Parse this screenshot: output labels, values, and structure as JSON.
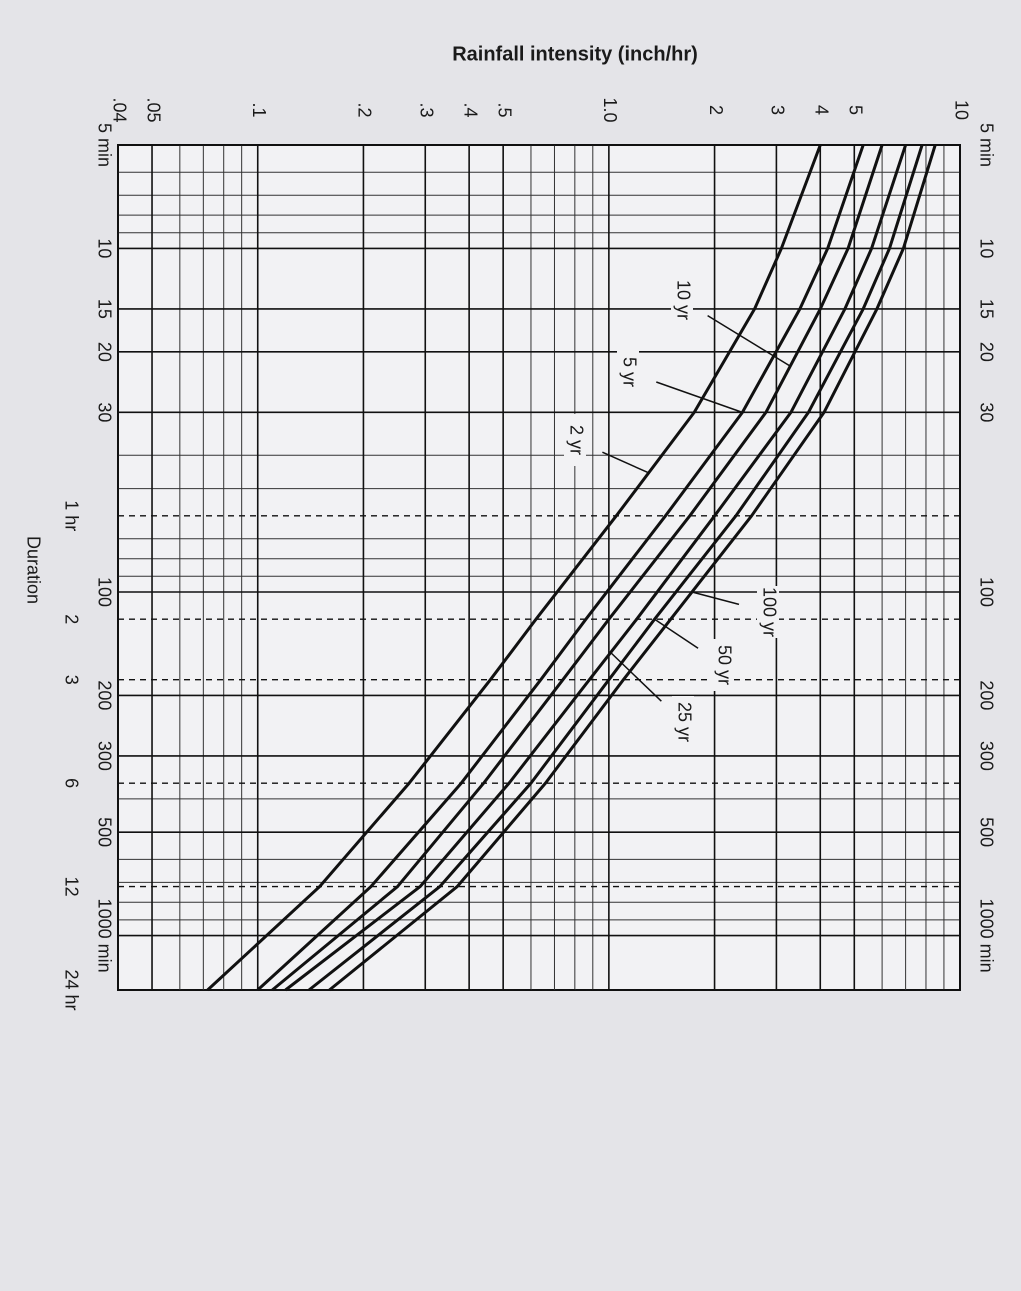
{
  "chart_data": {
    "type": "line",
    "title": "Rainfall intensity (inch/hr)",
    "xlabel": "Duration",
    "log_x": true,
    "log_y": true,
    "grid": true,
    "x": [
      5,
      10,
      15,
      30,
      60,
      120,
      180,
      360,
      720,
      1440
    ],
    "xlim": [
      5,
      1440
    ],
    "xticks": [
      {
        "value": 5,
        "label": "5 min"
      },
      10,
      15,
      20,
      30,
      100,
      200,
      300,
      500,
      {
        "value": 1000,
        "label": "1000 min"
      }
    ],
    "x2ticks": [
      {
        "value": 60,
        "label": "1 hr"
      },
      {
        "value": 120,
        "label": "2"
      },
      {
        "value": 180,
        "label": "3"
      },
      {
        "value": 360,
        "label": "6"
      },
      {
        "value": 720,
        "label": "12"
      },
      {
        "value": 1440,
        "label": "24 hr"
      }
    ],
    "x_minor_grid": [
      6,
      7,
      8,
      9,
      40,
      50,
      70,
      80,
      90,
      400,
      600,
      700,
      800,
      900
    ],
    "ylim": [
      0.04,
      10
    ],
    "yticks": [
      {
        "value": 0.04,
        "label": ".04"
      },
      {
        "value": 0.05,
        "label": ".05"
      },
      {
        "value": 0.1,
        "label": ".1"
      },
      {
        "value": 0.2,
        "label": ".2"
      },
      {
        "value": 0.3,
        "label": ".3"
      },
      {
        "value": 0.4,
        "label": ".4"
      },
      {
        "value": 0.5,
        "label": ".5"
      },
      {
        "value": 1,
        "label": "1.0"
      },
      2,
      3,
      4,
      5,
      10
    ],
    "y_minor_grid": [
      0.06,
      0.07,
      0.08,
      0.09,
      0.6,
      0.7,
      0.8,
      0.9,
      6,
      7,
      8,
      9
    ],
    "series": [
      {
        "name": "2 yr",
        "color": "#111111",
        "values": [
          4.0,
          3.1,
          2.6,
          1.75,
          1.05,
          0.62,
          0.46,
          0.27,
          0.15,
          0.072
        ]
      },
      {
        "name": "5 yr",
        "color": "#111111",
        "values": [
          5.3,
          4.2,
          3.5,
          2.4,
          1.45,
          0.86,
          0.64,
          0.38,
          0.21,
          0.1
        ]
      },
      {
        "name": "10 yr",
        "color": "#111111",
        "values": [
          6.0,
          4.8,
          4.0,
          2.8,
          1.7,
          1.0,
          0.74,
          0.44,
          0.25,
          0.11
        ]
      },
      {
        "name": "25 yr",
        "color": "#111111",
        "values": [
          7.0,
          5.6,
          4.7,
          3.3,
          2.0,
          1.2,
          0.88,
          0.52,
          0.29,
          0.12
        ]
      },
      {
        "name": "50 yr",
        "color": "#111111",
        "values": [
          7.8,
          6.3,
          5.3,
          3.7,
          2.3,
          1.35,
          1.0,
          0.6,
          0.33,
          0.14
        ]
      },
      {
        "name": "100 yr",
        "color": "#111111",
        "values": [
          8.5,
          6.9,
          5.8,
          4.1,
          2.55,
          1.5,
          1.1,
          0.66,
          0.37,
          0.16
        ]
      }
    ]
  }
}
